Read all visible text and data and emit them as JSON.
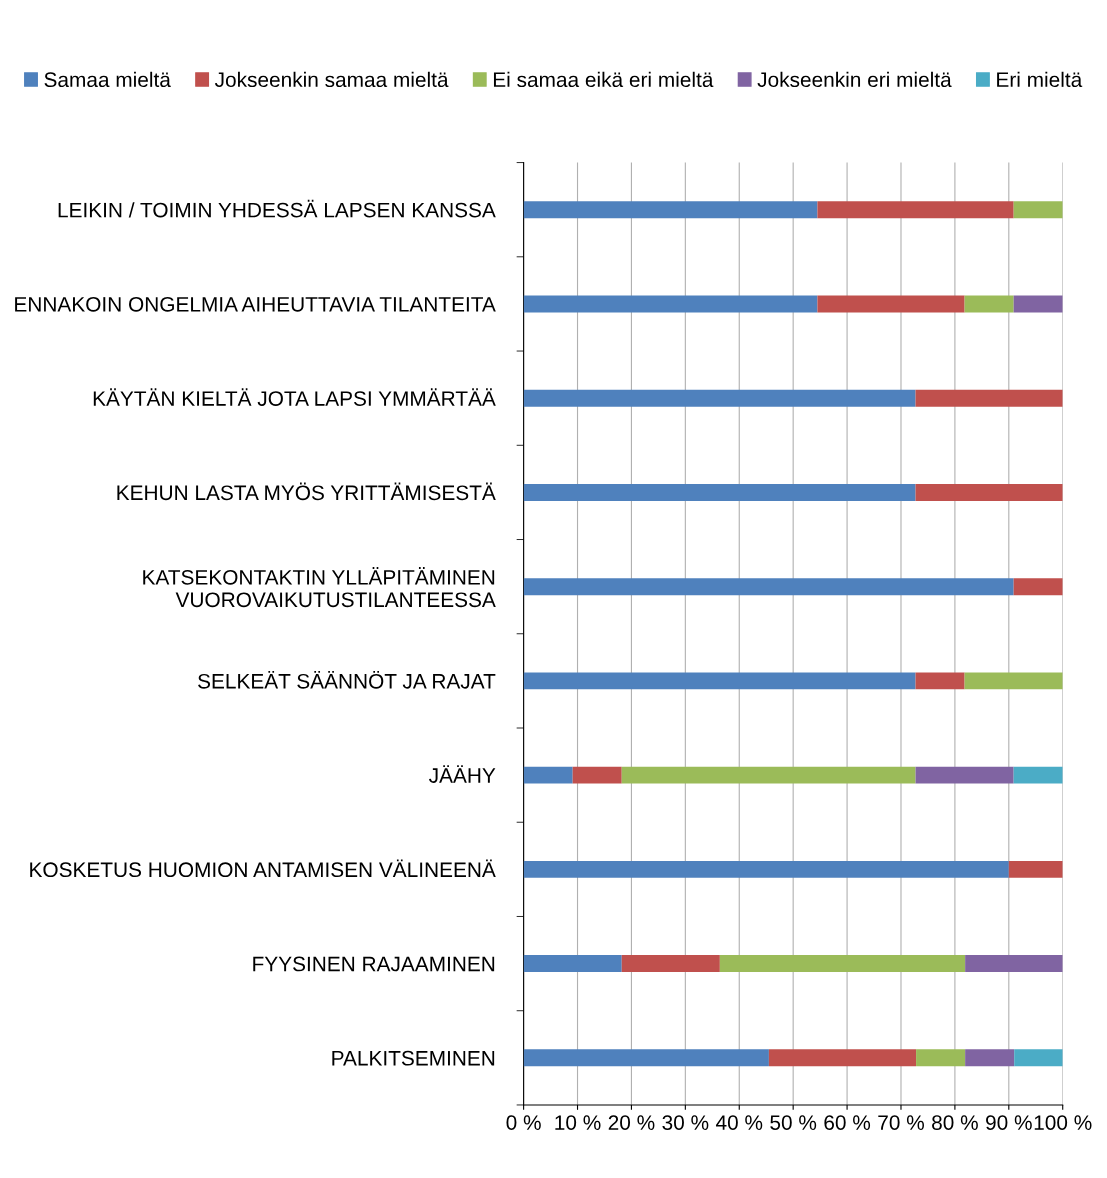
{
  "chart_data": {
    "type": "bar",
    "orientation": "horizontal",
    "stacked": true,
    "categories": [
      "LEIKIN / TOIMIN YHDESSÄ LAPSEN KANSSA",
      "ENNAKOIN ONGELMIA AIHEUTTAVIA TILANTEITA",
      "KÄYTÄN KIELTÄ JOTA LAPSI YMMÄRTÄÄ",
      "KEHUN LASTA MYÖS YRITTÄMISESTÄ",
      "KATSEKONTAKTIN YLLÄPITÄMINEN\nVUOROVAIKUTUSTILANTEESSA",
      "SELKEÄT SÄÄNNÖT JA RAJAT",
      "JÄÄHY",
      "KOSKETUS HUOMION ANTAMISEN VÄLINEENÄ",
      "FYYSINEN RAJAAMINEN",
      "PALKITSEMINEN"
    ],
    "series": [
      {
        "name": "Samaa mieltä",
        "color": "#4f81bd",
        "values": [
          54.5,
          54.5,
          72.7,
          72.7,
          90.9,
          72.7,
          9.1,
          90,
          18.2,
          45.5
        ]
      },
      {
        "name": "Jokseenkin samaa mieltä",
        "color": "#c0504d",
        "values": [
          36.4,
          27.3,
          27.3,
          27.3,
          9.1,
          9.1,
          9.1,
          10,
          18.2,
          27.3
        ]
      },
      {
        "name": "Ei samaa eikä eri mieltä",
        "color": "#9bbb59",
        "values": [
          9.1,
          9.1,
          0,
          0,
          0,
          18.2,
          54.5,
          0,
          45.5,
          9.1
        ]
      },
      {
        "name": "Jokseenkin eri mieltä",
        "color": "#8064a2",
        "values": [
          0,
          9.1,
          0,
          0,
          0,
          0,
          18.2,
          0,
          18.1,
          9.1
        ]
      },
      {
        "name": "Eri mieltä",
        "color": "#4bacc6",
        "values": [
          0,
          0,
          0,
          0,
          0,
          0,
          9.1,
          0,
          0,
          9.0
        ]
      }
    ],
    "xlim": [
      0,
      100
    ],
    "xticks": [
      {
        "value": 0,
        "label": "0 %"
      },
      {
        "value": 10,
        "label": "10 %"
      },
      {
        "value": 20,
        "label": "20 %"
      },
      {
        "value": 30,
        "label": "30 %"
      },
      {
        "value": 40,
        "label": "40 %"
      },
      {
        "value": 50,
        "label": "50 %"
      },
      {
        "value": 60,
        "label": "60 %"
      },
      {
        "value": 70,
        "label": "70 %"
      },
      {
        "value": 80,
        "label": "80 %"
      },
      {
        "value": 90,
        "label": "90 %"
      },
      {
        "value": 100,
        "label": "100 %"
      }
    ],
    "grid": "x",
    "legend": "top"
  }
}
